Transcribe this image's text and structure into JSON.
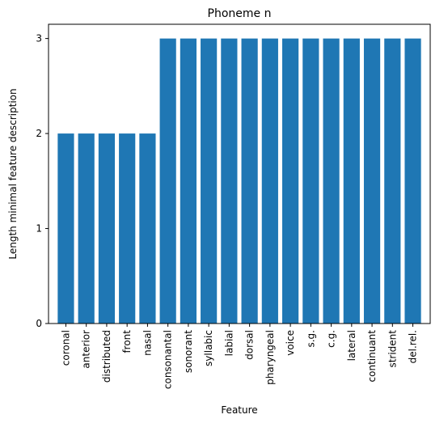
{
  "chart_data": {
    "type": "bar",
    "title": "Phoneme n",
    "xlabel": "Feature",
    "ylabel": "Length minimal feature description",
    "categories": [
      "coronal",
      "anterior",
      "distributed",
      "front",
      "nasal",
      "consonantal",
      "sonorant",
      "syllabic",
      "labial",
      "dorsal",
      "pharyngeal",
      "voice",
      "s.g.",
      "c.g.",
      "lateral",
      "continuant",
      "strident",
      "del.rel."
    ],
    "values": [
      2,
      2,
      2,
      2,
      2,
      3,
      3,
      3,
      3,
      3,
      3,
      3,
      3,
      3,
      3,
      3,
      3,
      3
    ],
    "ylim": [
      0,
      3.15
    ],
    "yticks": [
      0,
      1,
      2,
      3
    ],
    "bar_color": "#1f77b4",
    "grid": false,
    "legend": "none"
  }
}
